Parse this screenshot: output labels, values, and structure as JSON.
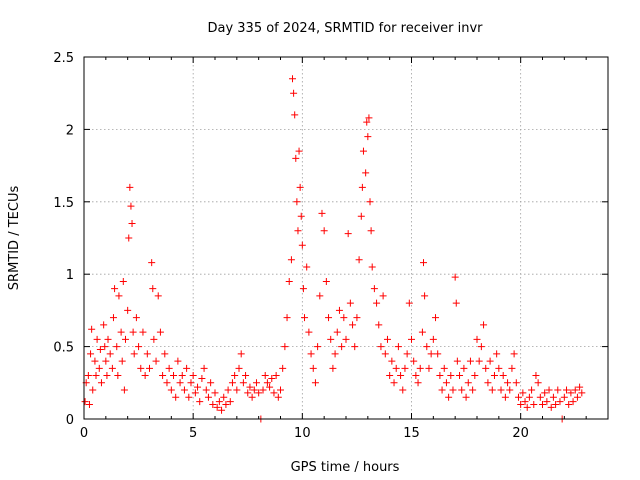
{
  "chart_data": {
    "type": "scatter",
    "title": "Day 335 of 2024, SRMTID for receiver invr",
    "xlabel": "GPS time / hours",
    "ylabel": "SRMTID / TECUs",
    "xlim": [
      0,
      24
    ],
    "ylim": [
      0,
      2.5
    ],
    "xticks": [
      0,
      5,
      10,
      15,
      20
    ],
    "yticks": [
      0,
      0.5,
      1,
      1.5,
      2,
      2.5
    ],
    "ytick_labels": [
      "0",
      "0.5",
      "1",
      "1.5",
      "2",
      "2.5"
    ],
    "grid": true,
    "marker": "+",
    "color": "#ff0000",
    "series": [
      {
        "name": "SRMTID",
        "points": [
          [
            0.05,
            0.12
          ],
          [
            0.1,
            0.25
          ],
          [
            0.2,
            0.3
          ],
          [
            0.25,
            0.1
          ],
          [
            0.3,
            0.45
          ],
          [
            0.35,
            0.62
          ],
          [
            0.4,
            0.2
          ],
          [
            0.5,
            0.4
          ],
          [
            0.55,
            0.3
          ],
          [
            0.6,
            0.55
          ],
          [
            0.7,
            0.35
          ],
          [
            0.75,
            0.48
          ],
          [
            0.8,
            0.25
          ],
          [
            0.9,
            0.65
          ],
          [
            0.95,
            0.5
          ],
          [
            1.0,
            0.4
          ],
          [
            1.05,
            0.3
          ],
          [
            1.1,
            0.55
          ],
          [
            1.2,
            0.45
          ],
          [
            1.3,
            0.35
          ],
          [
            1.35,
            0.7
          ],
          [
            1.4,
            0.9
          ],
          [
            1.5,
            0.5
          ],
          [
            1.55,
            0.3
          ],
          [
            1.6,
            0.85
          ],
          [
            1.7,
            0.6
          ],
          [
            1.75,
            0.4
          ],
          [
            1.8,
            0.95
          ],
          [
            1.85,
            0.2
          ],
          [
            1.9,
            0.55
          ],
          [
            2.0,
            0.75
          ],
          [
            2.05,
            1.25
          ],
          [
            2.1,
            1.6
          ],
          [
            2.15,
            1.47
          ],
          [
            2.2,
            1.35
          ],
          [
            2.25,
            0.6
          ],
          [
            2.3,
            0.45
          ],
          [
            2.4,
            0.7
          ],
          [
            2.5,
            0.5
          ],
          [
            2.6,
            0.35
          ],
          [
            2.7,
            0.6
          ],
          [
            2.8,
            0.3
          ],
          [
            2.9,
            0.45
          ],
          [
            3.0,
            0.35
          ],
          [
            3.1,
            1.08
          ],
          [
            3.15,
            0.9
          ],
          [
            3.2,
            0.55
          ],
          [
            3.3,
            0.4
          ],
          [
            3.4,
            0.85
          ],
          [
            3.5,
            0.6
          ],
          [
            3.6,
            0.3
          ],
          [
            3.7,
            0.45
          ],
          [
            3.8,
            0.25
          ],
          [
            3.9,
            0.35
          ],
          [
            4.0,
            0.2
          ],
          [
            4.1,
            0.3
          ],
          [
            4.2,
            0.15
          ],
          [
            4.3,
            0.4
          ],
          [
            4.4,
            0.25
          ],
          [
            4.5,
            0.3
          ],
          [
            4.6,
            0.2
          ],
          [
            4.7,
            0.35
          ],
          [
            4.8,
            0.15
          ],
          [
            4.9,
            0.25
          ],
          [
            5.0,
            0.3
          ],
          [
            5.1,
            0.18
          ],
          [
            5.2,
            0.22
          ],
          [
            5.3,
            0.12
          ],
          [
            5.4,
            0.28
          ],
          [
            5.5,
            0.35
          ],
          [
            5.6,
            0.2
          ],
          [
            5.7,
            0.15
          ],
          [
            5.8,
            0.25
          ],
          [
            5.9,
            0.1
          ],
          [
            6.0,
            0.18
          ],
          [
            6.1,
            0.08
          ],
          [
            6.2,
            0.12
          ],
          [
            6.3,
            0.06
          ],
          [
            6.4,
            0.15
          ],
          [
            6.5,
            0.1
          ],
          [
            6.6,
            0.2
          ],
          [
            6.7,
            0.12
          ],
          [
            6.8,
            0.25
          ],
          [
            6.9,
            0.3
          ],
          [
            7.0,
            0.2
          ],
          [
            7.1,
            0.35
          ],
          [
            7.2,
            0.45
          ],
          [
            7.3,
            0.25
          ],
          [
            7.4,
            0.3
          ],
          [
            7.5,
            0.18
          ],
          [
            7.6,
            0.22
          ],
          [
            7.7,
            0.15
          ],
          [
            7.8,
            0.2
          ],
          [
            7.9,
            0.25
          ],
          [
            8.0,
            0.18
          ],
          [
            8.1,
            0.0
          ],
          [
            8.2,
            0.2
          ],
          [
            8.3,
            0.3
          ],
          [
            8.4,
            0.25
          ],
          [
            8.5,
            0.22
          ],
          [
            8.6,
            0.28
          ],
          [
            8.7,
            0.18
          ],
          [
            8.8,
            0.3
          ],
          [
            8.9,
            0.15
          ],
          [
            9.0,
            0.2
          ],
          [
            9.1,
            0.35
          ],
          [
            9.2,
            0.5
          ],
          [
            9.3,
            0.7
          ],
          [
            9.4,
            0.95
          ],
          [
            9.5,
            1.1
          ],
          [
            9.55,
            2.35
          ],
          [
            9.6,
            2.25
          ],
          [
            9.65,
            2.1
          ],
          [
            9.7,
            1.8
          ],
          [
            9.75,
            1.5
          ],
          [
            9.8,
            1.3
          ],
          [
            9.85,
            1.85
          ],
          [
            9.9,
            1.6
          ],
          [
            9.95,
            1.4
          ],
          [
            10.0,
            1.2
          ],
          [
            10.05,
            0.9
          ],
          [
            10.1,
            0.7
          ],
          [
            10.2,
            1.05
          ],
          [
            10.3,
            0.6
          ],
          [
            10.4,
            0.45
          ],
          [
            10.5,
            0.35
          ],
          [
            10.6,
            0.25
          ],
          [
            10.7,
            0.5
          ],
          [
            10.8,
            0.85
          ],
          [
            10.9,
            1.42
          ],
          [
            11.0,
            1.3
          ],
          [
            11.1,
            0.95
          ],
          [
            11.2,
            0.7
          ],
          [
            11.3,
            0.55
          ],
          [
            11.4,
            0.35
          ],
          [
            11.5,
            0.45
          ],
          [
            11.6,
            0.6
          ],
          [
            11.7,
            0.75
          ],
          [
            11.8,
            0.5
          ],
          [
            11.9,
            0.7
          ],
          [
            12.0,
            0.55
          ],
          [
            12.1,
            1.28
          ],
          [
            12.2,
            0.8
          ],
          [
            12.3,
            0.65
          ],
          [
            12.4,
            0.5
          ],
          [
            12.5,
            0.7
          ],
          [
            12.6,
            1.1
          ],
          [
            12.7,
            1.4
          ],
          [
            12.75,
            1.6
          ],
          [
            12.8,
            1.85
          ],
          [
            12.9,
            1.7
          ],
          [
            12.95,
            2.05
          ],
          [
            13.0,
            1.95
          ],
          [
            13.05,
            2.08
          ],
          [
            13.1,
            1.5
          ],
          [
            13.15,
            1.3
          ],
          [
            13.2,
            1.05
          ],
          [
            13.3,
            0.9
          ],
          [
            13.4,
            0.8
          ],
          [
            13.5,
            0.65
          ],
          [
            13.6,
            0.5
          ],
          [
            13.7,
            0.85
          ],
          [
            13.8,
            0.45
          ],
          [
            13.9,
            0.55
          ],
          [
            14.0,
            0.3
          ],
          [
            14.1,
            0.4
          ],
          [
            14.2,
            0.25
          ],
          [
            14.3,
            0.35
          ],
          [
            14.4,
            0.5
          ],
          [
            14.5,
            0.3
          ],
          [
            14.6,
            0.2
          ],
          [
            14.7,
            0.35
          ],
          [
            14.8,
            0.45
          ],
          [
            14.9,
            0.8
          ],
          [
            15.0,
            0.55
          ],
          [
            15.1,
            0.4
          ],
          [
            15.2,
            0.3
          ],
          [
            15.3,
            0.25
          ],
          [
            15.4,
            0.35
          ],
          [
            15.5,
            0.6
          ],
          [
            15.55,
            1.08
          ],
          [
            15.6,
            0.85
          ],
          [
            15.7,
            0.5
          ],
          [
            15.8,
            0.35
          ],
          [
            15.9,
            0.45
          ],
          [
            16.0,
            0.55
          ],
          [
            16.1,
            0.7
          ],
          [
            16.2,
            0.45
          ],
          [
            16.3,
            0.3
          ],
          [
            16.4,
            0.2
          ],
          [
            16.5,
            0.35
          ],
          [
            16.6,
            0.25
          ],
          [
            16.7,
            0.15
          ],
          [
            16.8,
            0.3
          ],
          [
            16.9,
            0.2
          ],
          [
            17.0,
            0.98
          ],
          [
            17.05,
            0.8
          ],
          [
            17.1,
            0.4
          ],
          [
            17.2,
            0.3
          ],
          [
            17.3,
            0.2
          ],
          [
            17.4,
            0.35
          ],
          [
            17.5,
            0.15
          ],
          [
            17.6,
            0.25
          ],
          [
            17.7,
            0.4
          ],
          [
            17.8,
            0.2
          ],
          [
            17.9,
            0.3
          ],
          [
            18.0,
            0.55
          ],
          [
            18.1,
            0.4
          ],
          [
            18.2,
            0.5
          ],
          [
            18.3,
            0.65
          ],
          [
            18.4,
            0.35
          ],
          [
            18.5,
            0.25
          ],
          [
            18.6,
            0.4
          ],
          [
            18.7,
            0.2
          ],
          [
            18.8,
            0.3
          ],
          [
            18.9,
            0.45
          ],
          [
            19.0,
            0.35
          ],
          [
            19.1,
            0.2
          ],
          [
            19.2,
            0.3
          ],
          [
            19.3,
            0.15
          ],
          [
            19.4,
            0.25
          ],
          [
            19.5,
            0.2
          ],
          [
            19.6,
            0.35
          ],
          [
            19.7,
            0.45
          ],
          [
            19.8,
            0.25
          ],
          [
            19.9,
            0.15
          ],
          [
            20.0,
            0.1
          ],
          [
            20.1,
            0.18
          ],
          [
            20.2,
            0.12
          ],
          [
            20.3,
            0.08
          ],
          [
            20.4,
            0.15
          ],
          [
            20.5,
            0.2
          ],
          [
            20.6,
            0.1
          ],
          [
            20.7,
            0.3
          ],
          [
            20.8,
            0.25
          ],
          [
            20.9,
            0.15
          ],
          [
            21.0,
            0.1
          ],
          [
            21.1,
            0.18
          ],
          [
            21.2,
            0.12
          ],
          [
            21.3,
            0.2
          ],
          [
            21.4,
            0.08
          ],
          [
            21.5,
            0.15
          ],
          [
            21.6,
            0.1
          ],
          [
            21.7,
            0.2
          ],
          [
            21.8,
            0.12
          ],
          [
            21.9,
            0.0
          ],
          [
            22.0,
            0.15
          ],
          [
            22.1,
            0.2
          ],
          [
            22.2,
            0.1
          ],
          [
            22.3,
            0.18
          ],
          [
            22.4,
            0.12
          ],
          [
            22.5,
            0.2
          ],
          [
            22.6,
            0.15
          ],
          [
            22.7,
            0.22
          ],
          [
            22.8,
            0.18
          ]
        ]
      }
    ]
  }
}
